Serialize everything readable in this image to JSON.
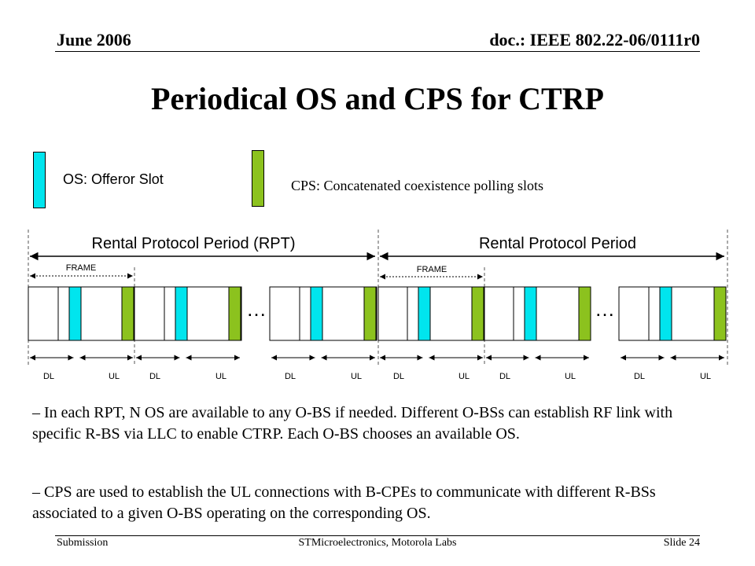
{
  "header": {
    "date": "June 2006",
    "doc": "doc.: IEEE 802.22-06/0111r0"
  },
  "title": "Periodical OS and CPS for CTRP",
  "legend": {
    "os_label": "OS: Offeror Slot",
    "cps_label": "CPS: Concatenated coexistence polling slots",
    "os_color": "#00e5ee",
    "cps_color": "#8cc21e"
  },
  "diagram": {
    "rpt1_label": "Rental Protocol Period (RPT)",
    "rpt2_label": "Rental Protocol Period",
    "frame_label": "FRAME",
    "ellipsis": "…",
    "dl_label": "DL",
    "ul_label": "UL"
  },
  "body": {
    "p1": "– In each RPT, N OS are available to any O-BS if needed. Different O-BSs can establish RF link with specific R-BS via LLC to enable CTRP. Each O-BS chooses an available OS.",
    "p2": "– CPS are used to establish the UL connections with B-CPEs to communicate with different R-BSs associated to a given O-BS operating on the corresponding OS."
  },
  "footer": {
    "left": "Submission",
    "center": "STMicroelectronics,  Motorola Labs",
    "right": "Slide 24"
  }
}
